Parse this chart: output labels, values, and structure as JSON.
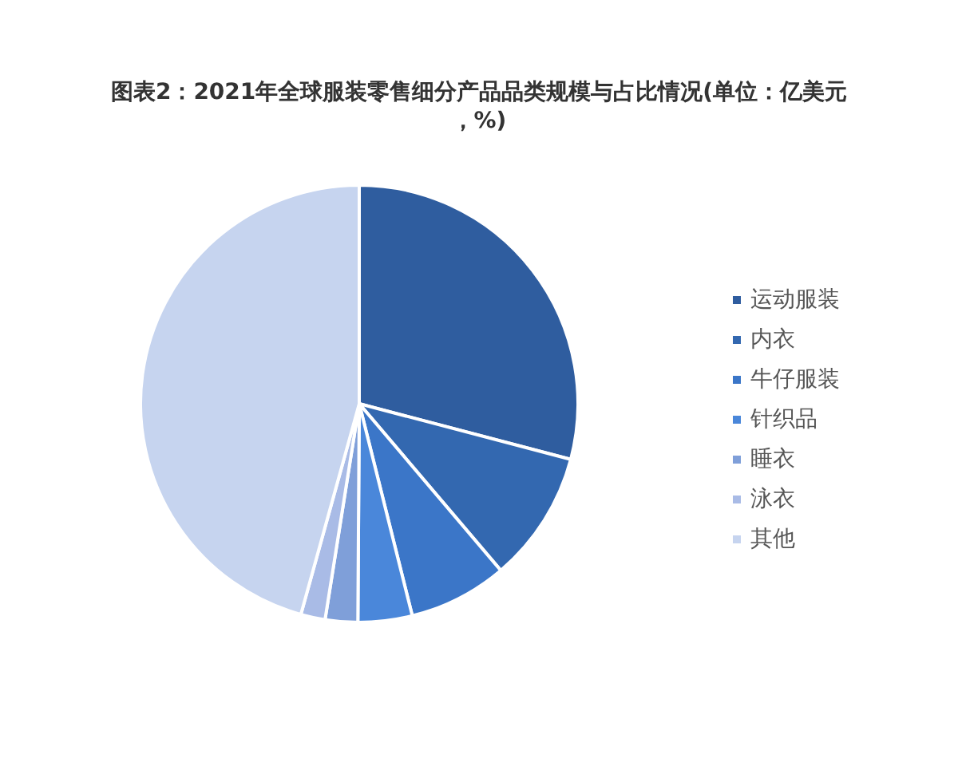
{
  "chart_data": {
    "type": "pie",
    "title": "图表2：2021年全球服装零售细分产品品类规模与占比情况(单位：亿美元，%)",
    "categories": [
      "运动服装",
      "内衣",
      "牛仔服装",
      "针织品",
      "睡衣",
      "泳衣",
      "其他"
    ],
    "values": [
      29.1,
      9.7,
      7.3,
      4.0,
      2.4,
      1.8,
      45.7
    ],
    "colors": [
      "#2f5d9f",
      "#3368b0",
      "#3b76c8",
      "#4a87da",
      "#7f9fd9",
      "#a9bbe6",
      "#c6d4ef"
    ],
    "legend": "right"
  }
}
